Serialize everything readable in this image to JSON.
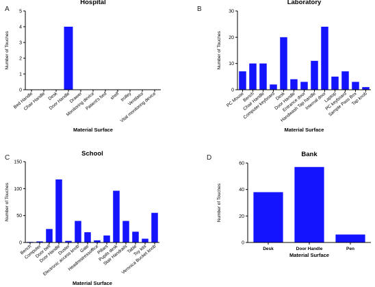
{
  "chart_data": [
    {
      "panel": "A",
      "type": "bar",
      "title": "Hospital",
      "xlabel": "Material Surface",
      "ylabel": "Number of Touches",
      "ylim": [
        0,
        5
      ],
      "yticks": [
        0,
        1,
        2,
        3,
        4,
        5
      ],
      "categories": [
        "Bed Handle",
        "Chair Handle",
        "Desk",
        "Door Handle",
        "Drawer",
        "Monitoring device",
        "Patient's bed",
        "shelf",
        "trolley",
        "Ventilator",
        "Vital monitoring device"
      ],
      "values": [
        0,
        0,
        0,
        4,
        0,
        0,
        0,
        0,
        0,
        0,
        0
      ],
      "color": "#1414ff"
    },
    {
      "panel": "B",
      "type": "bar",
      "title": "Laboratory",
      "xlabel": "Material Surface",
      "ylabel": "Number of Touches",
      "ylim": [
        0,
        30
      ],
      "yticks": [
        0,
        10,
        20,
        30
      ],
      "categories": [
        "PC Mouse",
        "Bench",
        "Chair Handle",
        "Computer keyboard",
        "Desk",
        "Door Handle",
        "Entrance door",
        "Handwash Tap handle",
        "Internal door",
        "Laptop",
        "PC keyboard",
        "Sample Pass Box",
        "Tap knob"
      ],
      "values": [
        7,
        10,
        10,
        2,
        20,
        4,
        3,
        11,
        24,
        5,
        7,
        3,
        1
      ],
      "color": "#1414ff"
    },
    {
      "panel": "C",
      "type": "bar",
      "title": "School",
      "xlabel": "Material Surface",
      "ylabel": "Number of Touches",
      "ylim": [
        0,
        150
      ],
      "yticks": [
        0,
        50,
        100,
        150
      ],
      "categories": [
        "Bench",
        "Computer",
        "Door bell",
        "Door Handle",
        "Duster",
        "Electronic access knob",
        "Gate",
        "Headmistressoffice",
        "Pillars",
        "Pupils desk",
        "Stair Handrails",
        "Table",
        "Toy kits",
        "Veronica Bucket knob"
      ],
      "values": [
        1,
        2,
        25,
        117,
        3,
        40,
        19,
        4,
        13,
        96,
        40,
        20,
        7,
        55
      ],
      "color": "#1414ff"
    },
    {
      "panel": "D",
      "type": "bar",
      "title": "Bank",
      "xlabel": "Material Surface",
      "ylabel": "Number of Touches",
      "ylim": [
        0,
        60
      ],
      "yticks": [
        0,
        20,
        40,
        60
      ],
      "categories": [
        "Desk",
        "Door Handle",
        "Pen"
      ],
      "values": [
        38,
        57,
        6
      ],
      "color": "#1414ff"
    }
  ]
}
